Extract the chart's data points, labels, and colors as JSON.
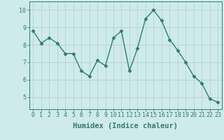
{
  "x": [
    0,
    1,
    2,
    3,
    4,
    5,
    6,
    7,
    8,
    9,
    10,
    11,
    12,
    13,
    14,
    15,
    16,
    17,
    18,
    19,
    20,
    21,
    22,
    23
  ],
  "y": [
    8.8,
    8.1,
    8.4,
    8.1,
    7.5,
    7.5,
    6.5,
    6.2,
    7.1,
    6.8,
    8.4,
    8.8,
    6.5,
    7.8,
    9.5,
    10.0,
    9.4,
    8.3,
    7.7,
    7.0,
    6.2,
    5.8,
    4.9,
    4.7
  ],
  "line_color": "#2e7d6e",
  "marker": "D",
  "markersize": 2.5,
  "linewidth": 1.0,
  "xlabel": "Humidex (Indice chaleur)",
  "xlim": [
    -0.5,
    23.5
  ],
  "ylim": [
    4.3,
    10.5
  ],
  "yticks": [
    5,
    6,
    7,
    8,
    9,
    10
  ],
  "xticks": [
    0,
    1,
    2,
    3,
    4,
    5,
    6,
    7,
    8,
    9,
    10,
    11,
    12,
    13,
    14,
    15,
    16,
    17,
    18,
    19,
    20,
    21,
    22,
    23
  ],
  "bg_color": "#ceeaea",
  "grid_color": "#aed0d0",
  "tick_color": "#2e7d6e",
  "label_color": "#2e7d6e",
  "xlabel_fontsize": 7.5,
  "tick_fontsize": 6.0
}
